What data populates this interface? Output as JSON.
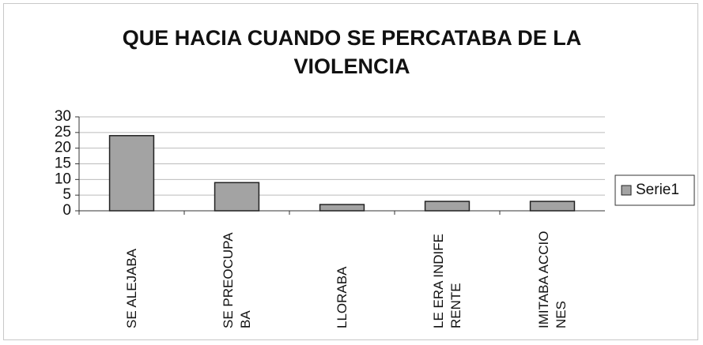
{
  "chart_data": {
    "type": "bar",
    "title": "QUE HACIA CUANDO SE PERCATABA DE LA VIOLENCIA",
    "categories": [
      "SE ALEJABA",
      "SE PREOCUPABA",
      "LLORABA",
      "LE ERA INDIFERENTE",
      "IMITABA ACCIONES"
    ],
    "series": [
      {
        "name": "Serie1",
        "color": "#a3a3a3",
        "values": [
          24,
          9,
          2,
          3,
          3
        ]
      }
    ],
    "ylim": [
      0,
      30
    ],
    "yticks": [
      0,
      5,
      10,
      15,
      20,
      25,
      30
    ],
    "grid": true,
    "legend": "right"
  }
}
